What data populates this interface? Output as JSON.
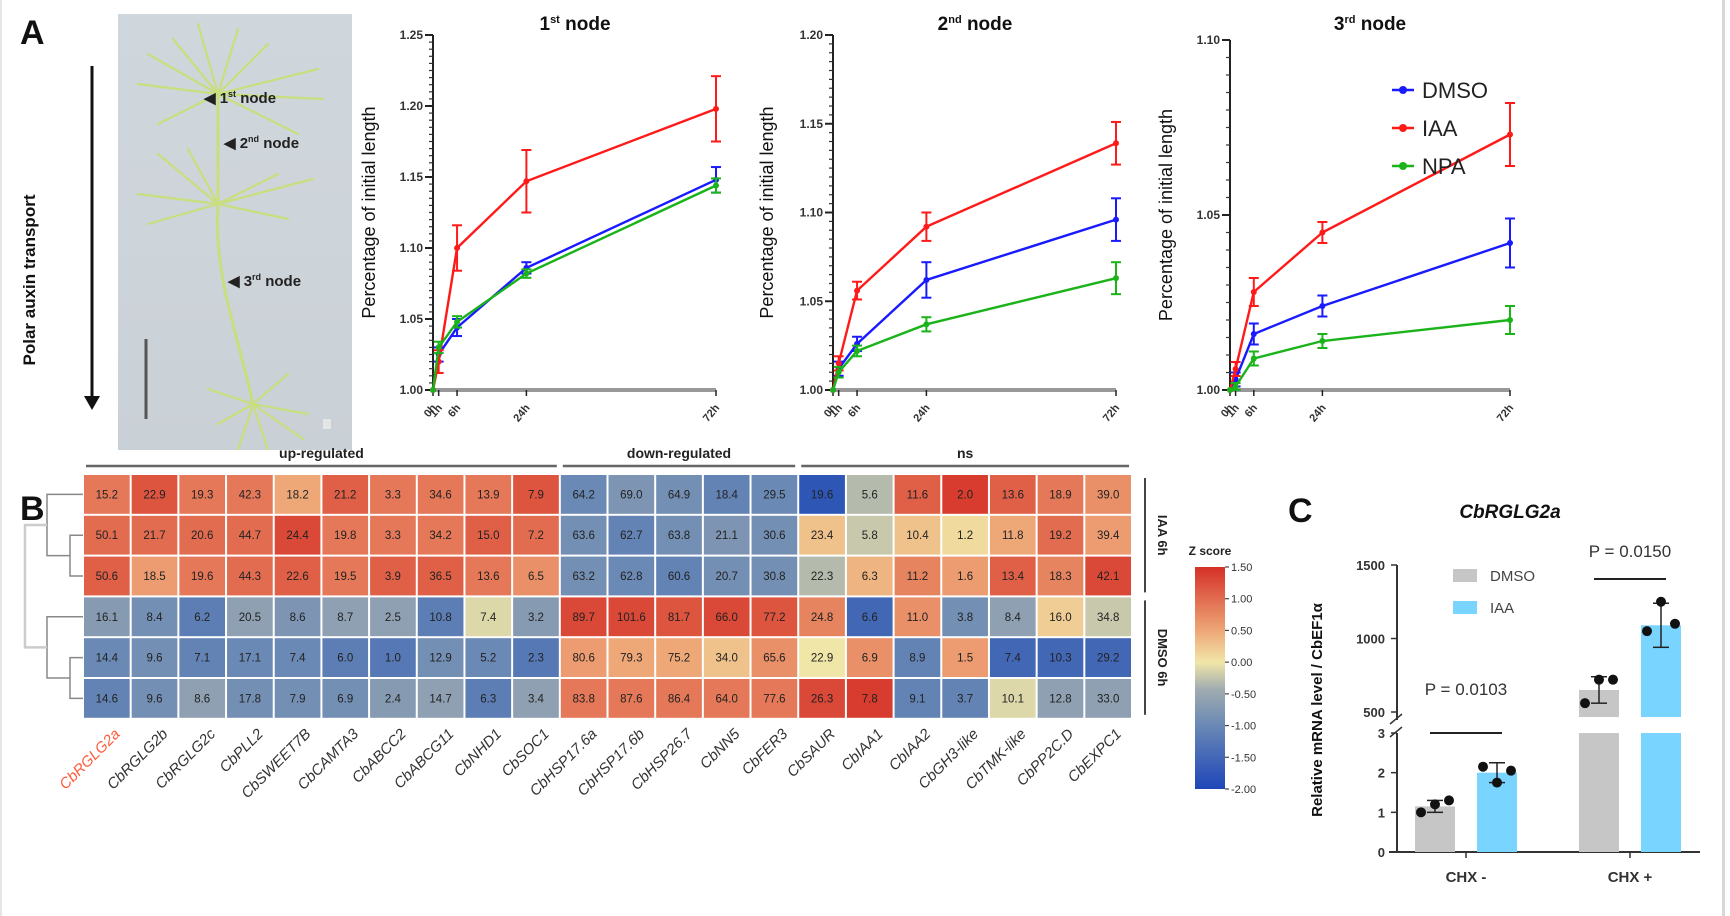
{
  "figure": {
    "panel_labels": [
      "A",
      "B",
      "C"
    ],
    "photo": {
      "arrow_label": "Polar auxin transport",
      "node_labels": [
        {
          "num": "1",
          "sup": "st",
          "text": "node"
        },
        {
          "num": "2",
          "sup": "nd",
          "text": "node"
        },
        {
          "num": "3",
          "sup": "rd",
          "text": "node"
        }
      ]
    }
  },
  "chart_data": [
    {
      "id": "node1",
      "type": "line",
      "title": "1st node",
      "title_num": "1",
      "title_sup": "st",
      "title_text": "node",
      "xlabel": "",
      "ylabel": "Percentage of initial length",
      "x": [
        0,
        1,
        6,
        24,
        72
      ],
      "x_tick_labels": [
        "0h",
        "1h",
        "6h",
        "24h",
        "72h"
      ],
      "ylim": [
        1.0,
        1.25
      ],
      "y_ticks": [
        1.0,
        1.05,
        1.1,
        1.15,
        1.2,
        1.25
      ],
      "y_tick_labels": [
        "1.00",
        "1.05",
        "1.10",
        "1.15",
        "1.20",
        "1.25"
      ],
      "series": [
        {
          "name": "DMSO",
          "color": "#1a1aff",
          "values": [
            1.0,
            1.025,
            1.044,
            1.086,
            1.148
          ],
          "errors": [
            0.0,
            0.005,
            0.006,
            0.004,
            0.009
          ]
        },
        {
          "name": "IAA",
          "color": "#ff1a1a",
          "values": [
            1.0,
            1.02,
            1.1,
            1.147,
            1.198
          ],
          "errors": [
            0.0,
            0.008,
            0.016,
            0.022,
            0.023
          ]
        },
        {
          "name": "NPA",
          "color": "#1ab31a",
          "values": [
            1.0,
            1.03,
            1.048,
            1.082,
            1.144
          ],
          "errors": [
            0.0,
            0.004,
            0.004,
            0.003,
            0.005
          ]
        }
      ]
    },
    {
      "id": "node2",
      "type": "line",
      "title": "2nd node",
      "title_num": "2",
      "title_sup": "nd",
      "title_text": "node",
      "xlabel": "",
      "ylabel": "Percentage of initial length",
      "x": [
        0,
        1,
        6,
        24,
        72
      ],
      "x_tick_labels": [
        "0h",
        "1h",
        "6h",
        "24h",
        "72h"
      ],
      "ylim": [
        1.0,
        1.2
      ],
      "y_ticks": [
        1.0,
        1.05,
        1.1,
        1.15,
        1.2
      ],
      "y_tick_labels": [
        "1.00",
        "1.05",
        "1.10",
        "1.15",
        "1.20"
      ],
      "series": [
        {
          "name": "DMSO",
          "color": "#1a1aff",
          "values": [
            1.0,
            1.012,
            1.026,
            1.062,
            1.096
          ],
          "errors": [
            0.0,
            0.004,
            0.004,
            0.01,
            0.012
          ]
        },
        {
          "name": "IAA",
          "color": "#ff1a1a",
          "values": [
            1.0,
            1.015,
            1.056,
            1.092,
            1.139
          ],
          "errors": [
            0.0,
            0.004,
            0.005,
            0.008,
            0.012
          ]
        },
        {
          "name": "NPA",
          "color": "#1ab31a",
          "values": [
            1.0,
            1.01,
            1.022,
            1.037,
            1.063
          ],
          "errors": [
            0.0,
            0.003,
            0.003,
            0.004,
            0.009
          ]
        }
      ]
    },
    {
      "id": "node3",
      "type": "line",
      "title": "3rd node",
      "title_num": "3",
      "title_sup": "rd",
      "title_text": "node",
      "xlabel": "",
      "ylabel": "Percentage of initial length",
      "x": [
        0,
        1,
        6,
        24,
        72
      ],
      "x_tick_labels": [
        "0h",
        "1h",
        "6h",
        "24h",
        "72h"
      ],
      "ylim": [
        1.0,
        1.1
      ],
      "y_ticks": [
        1.0,
        1.05,
        1.1
      ],
      "y_tick_labels": [
        "1.00",
        "1.05",
        "1.10"
      ],
      "legend": {
        "placement": "top-left",
        "entries": [
          "DMSO",
          "IAA",
          "NPA"
        ]
      },
      "series": [
        {
          "name": "DMSO",
          "color": "#1a1aff",
          "values": [
            1.0,
            1.003,
            1.016,
            1.024,
            1.042
          ],
          "errors": [
            0.0,
            0.002,
            0.003,
            0.003,
            0.007
          ]
        },
        {
          "name": "IAA",
          "color": "#ff1a1a",
          "values": [
            1.0,
            1.006,
            1.028,
            1.045,
            1.073
          ],
          "errors": [
            0.0,
            0.002,
            0.004,
            0.003,
            0.009
          ]
        },
        {
          "name": "NPA",
          "color": "#1ab31a",
          "values": [
            1.0,
            1.001,
            1.009,
            1.014,
            1.02
          ],
          "errors": [
            0.0,
            0.001,
            0.002,
            0.002,
            0.004
          ]
        }
      ]
    },
    {
      "id": "heatmap",
      "type": "heatmap",
      "groups": [
        {
          "label": "up-regulated",
          "span": [
            0,
            9
          ]
        },
        {
          "label": "down-regulated",
          "span": [
            10,
            14
          ]
        },
        {
          "label": "ns",
          "span": [
            15,
            21
          ]
        }
      ],
      "columns": [
        "CbRGLG2a",
        "CbRGLG2b",
        "CbRGLG2c",
        "CbPLL2",
        "CbSWEET7B",
        "CbCAMTA3",
        "CbABCC2",
        "CbABCG11",
        "CbNHD1",
        "CbSOC1",
        "CbHSP17.6a",
        "CbHSP17.6b",
        "CbHSP26.7",
        "CbNN5",
        "CbFER3",
        "CbSAUR",
        "CbIAA1",
        "CbIAA2",
        "CbGH3-like",
        "CbTMK-like",
        "CbPP2C.D",
        "CbEXPC1"
      ],
      "highlight_column": "CbRGLG2a",
      "highlight_color": "#ff5a3c",
      "row_groups": [
        {
          "label": "IAA 6h",
          "rows": [
            0,
            1,
            2
          ]
        },
        {
          "label": "DMSO 6h",
          "rows": [
            3,
            4,
            5
          ]
        }
      ],
      "values": [
        [
          "15.2",
          "22.9",
          "19.3",
          "42.3",
          "18.2",
          "21.2",
          "3.3",
          "34.6",
          "13.9",
          "7.9",
          "64.2",
          "69.0",
          "64.9",
          "18.4",
          "29.5",
          "19.6",
          "5.6",
          "11.6",
          "2.0",
          "13.6",
          "18.9",
          "39.0"
        ],
        [
          "50.1",
          "21.7",
          "20.6",
          "44.7",
          "24.4",
          "19.8",
          "3.3",
          "34.2",
          "15.0",
          "7.2",
          "63.6",
          "62.7",
          "63.8",
          "21.1",
          "30.6",
          "23.4",
          "5.8",
          "10.4",
          "1.2",
          "11.8",
          "19.2",
          "39.4"
        ],
        [
          "50.6",
          "18.5",
          "19.6",
          "44.3",
          "22.6",
          "19.5",
          "3.9",
          "36.5",
          "13.6",
          "6.5",
          "63.2",
          "62.8",
          "60.6",
          "20.7",
          "30.8",
          "22.3",
          "6.3",
          "11.2",
          "1.6",
          "13.4",
          "18.3",
          "42.1"
        ],
        [
          "16.1",
          "8.4",
          "6.2",
          "20.5",
          "8.6",
          "8.7",
          "2.5",
          "10.8",
          "7.4",
          "3.2",
          "89.7",
          "101.6",
          "81.7",
          "66.0",
          "77.2",
          "24.8",
          "6.6",
          "11.0",
          "3.8",
          "8.4",
          "16.0",
          "34.8"
        ],
        [
          "14.4",
          "9.6",
          "7.1",
          "17.1",
          "7.4",
          "6.0",
          "1.0",
          "12.9",
          "5.2",
          "2.3",
          "80.6",
          "79.3",
          "75.2",
          "34.0",
          "65.6",
          "22.9",
          "6.9",
          "8.9",
          "1.5",
          "7.4",
          "10.3",
          "29.2"
        ],
        [
          "14.6",
          "9.6",
          "8.6",
          "17.8",
          "7.9",
          "6.9",
          "2.4",
          "14.7",
          "6.3",
          "3.4",
          "83.8",
          "87.6",
          "86.4",
          "64.0",
          "77.6",
          "26.3",
          "7.8",
          "9.1",
          "3.7",
          "10.1",
          "12.8",
          "33.0"
        ]
      ],
      "zscores": [
        [
          0.9,
          1.2,
          0.9,
          0.9,
          0.5,
          1.1,
          0.9,
          0.9,
          0.9,
          1.2,
          -1.0,
          -0.8,
          -0.9,
          -1.1,
          -1.0,
          -1.9,
          -0.3,
          1.1,
          1.4,
          1.1,
          0.9,
          0.7
        ],
        [
          1.0,
          1.0,
          1.0,
          1.0,
          1.3,
          0.9,
          0.9,
          0.9,
          1.1,
          1.0,
          -0.9,
          -1.1,
          -0.9,
          -0.8,
          -0.9,
          0.3,
          -0.2,
          0.3,
          0.1,
          0.5,
          1.0,
          0.6
        ],
        [
          1.1,
          0.6,
          0.9,
          1.0,
          1.1,
          0.9,
          1.1,
          1.1,
          0.9,
          0.7,
          -0.9,
          -1.0,
          -1.1,
          -0.9,
          -0.9,
          -0.3,
          0.4,
          0.8,
          0.6,
          1.1,
          0.8,
          1.3
        ],
        [
          -0.7,
          -0.9,
          -1.2,
          -0.6,
          -0.8,
          -0.6,
          -0.6,
          -1.2,
          -0.1,
          -0.7,
          1.3,
          1.3,
          1.2,
          1.3,
          1.2,
          0.8,
          -1.6,
          0.7,
          -0.9,
          -0.6,
          0.2,
          -0.2
        ],
        [
          -1.0,
          -0.9,
          -1.1,
          -1.0,
          -1.0,
          -1.2,
          -1.3,
          -0.9,
          -1.0,
          -1.3,
          0.6,
          0.5,
          0.5,
          0.3,
          0.7,
          0.0,
          0.7,
          -1.1,
          0.6,
          -1.6,
          -1.6,
          -1.6
        ],
        [
          -1.1,
          -0.9,
          -0.6,
          -0.9,
          -0.9,
          -0.9,
          -0.7,
          -0.6,
          -1.2,
          -0.6,
          0.9,
          0.9,
          0.9,
          0.9,
          0.9,
          1.3,
          1.4,
          -1.1,
          -1.1,
          -0.1,
          -0.6,
          -0.6
        ]
      ],
      "colorbar": {
        "title": "Z score",
        "ticks": [
          "1.50",
          "1.00",
          "0.50",
          "0.00",
          "-0.50",
          "-1.00",
          "-1.50",
          "-2.00"
        ],
        "range": [
          -2.0,
          1.5
        ],
        "colors": {
          "high": "#d73027",
          "mid_high": "#f4a582",
          "mid": "#f0e6a8",
          "mid_low": "#8da0b8",
          "low": "#2650b5"
        }
      }
    },
    {
      "id": "qpcr",
      "type": "bar",
      "title": "CbRGLG2a",
      "ylabel": "Relative mRNA level / CbEF1α",
      "categories": [
        "CHX -",
        "CHX +"
      ],
      "y_ticks_lower": [
        "0",
        "1",
        "2",
        "3"
      ],
      "y_ticks_upper": [
        "500",
        "1000",
        "1500"
      ],
      "axis_break": [
        3,
        500
      ],
      "legend": {
        "placement": "top-left",
        "entries": [
          "DMSO",
          "IAA"
        ]
      },
      "series": [
        {
          "name": "DMSO",
          "color": "#c6c6c6",
          "values": [
            1.15,
            650
          ],
          "points": [
            [
              1.0,
              1.3,
              1.2
            ],
            [
              560,
              720,
              720
            ]
          ],
          "errors": [
            0.15,
            90
          ]
        },
        {
          "name": "IAA",
          "color": "#79d4ff",
          "values": [
            2.0,
            1090
          ],
          "points": [
            [
              2.15,
              2.05,
              1.75
            ],
            [
              1050,
              1100,
              1250
            ]
          ],
          "errors": [
            0.25,
            150
          ]
        }
      ],
      "annotations": [
        {
          "text": "P = 0.0103",
          "category": "CHX -"
        },
        {
          "text": "P = 0.0150",
          "category": "CHX +"
        }
      ]
    }
  ]
}
